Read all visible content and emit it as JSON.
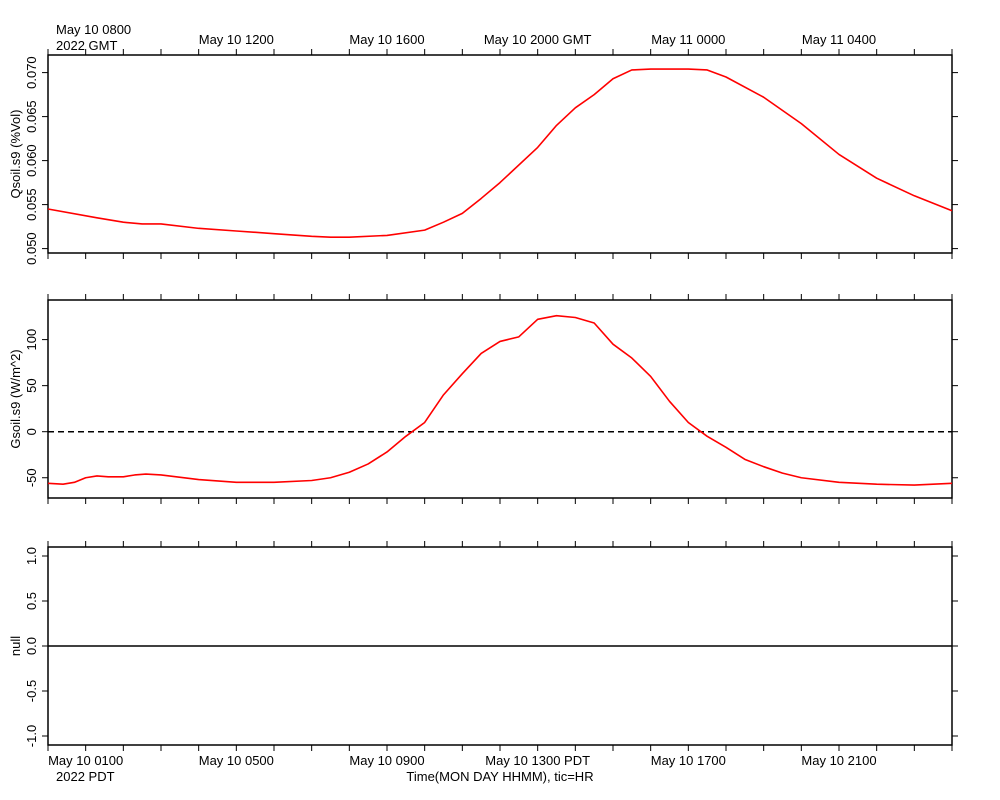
{
  "top_axis": {
    "first_label_line1": "May 10 0800",
    "first_label_line2": "2022 GMT",
    "labels": [
      {
        "hour": 4,
        "text": "May 10 1200"
      },
      {
        "hour": 8,
        "text": "May 10 1600"
      },
      {
        "hour": 12,
        "text": "May 10 2000 GMT"
      },
      {
        "hour": 16,
        "text": "May 11 0000"
      },
      {
        "hour": 20,
        "text": "May 11 0400"
      }
    ]
  },
  "bottom_axis": {
    "labels": [
      {
        "hour": 0,
        "text": "May 10 0100"
      },
      {
        "hour": 4,
        "text": "May 10 0500"
      },
      {
        "hour": 8,
        "text": "May 10 0900"
      },
      {
        "hour": 12,
        "text": "May 10 1300 PDT"
      },
      {
        "hour": 16,
        "text": "May 10 1700"
      },
      {
        "hour": 20,
        "text": "May 10 2100"
      }
    ],
    "year_label": "2022 PDT",
    "title": "Time(MON DAY HHMM), tic=HR"
  },
  "chart_data": [
    {
      "type": "line",
      "ylabel": "Qsoil.s9 (%Vol)",
      "xlim": [
        -1,
        23
      ],
      "ylim": [
        0.0495,
        0.072
      ],
      "yticks": [
        0.05,
        0.055,
        0.06,
        0.065,
        0.07
      ],
      "ytick_labels": [
        "0.050",
        "0.055",
        "0.060",
        "0.065",
        "0.070"
      ],
      "color": "#ff0000",
      "series": [
        {
          "x": [
            -1,
            0.3,
            1,
            1.5,
            2,
            3,
            4,
            5,
            6,
            6.5,
            7,
            8,
            9,
            9.5,
            10,
            10.5,
            11,
            12,
            12.5,
            13,
            13.5,
            14,
            14.5,
            15,
            16,
            16.5,
            17,
            18,
            19,
            20,
            21,
            22,
            23
          ],
          "y": [
            0.0545,
            0.0535,
            0.053,
            0.0528,
            0.0528,
            0.0523,
            0.052,
            0.0517,
            0.0514,
            0.0513,
            0.0513,
            0.0515,
            0.0521,
            0.053,
            0.054,
            0.0557,
            0.0575,
            0.0615,
            0.064,
            0.066,
            0.0675,
            0.0693,
            0.0703,
            0.0704,
            0.0704,
            0.0703,
            0.0695,
            0.0672,
            0.0642,
            0.0607,
            0.058,
            0.056,
            0.0543
          ]
        }
      ]
    },
    {
      "type": "line",
      "ylabel": "Gsoil.s9 (W/m^2)",
      "xlim": [
        -1,
        23
      ],
      "ylim": [
        -72,
        143
      ],
      "yticks": [
        -50,
        0,
        50,
        100
      ],
      "ytick_labels": [
        "-50",
        "0",
        "50",
        "100"
      ],
      "zero_line": {
        "y": 0,
        "dashed": true
      },
      "color": "#ff0000",
      "series": [
        {
          "x": [
            -1,
            -0.6,
            -0.3,
            0,
            0.3,
            0.6,
            1,
            1.3,
            1.6,
            2,
            3,
            4,
            5,
            6,
            6.5,
            7,
            7.5,
            8,
            8.5,
            9,
            9.5,
            10,
            10.5,
            11,
            11.5,
            12,
            12.5,
            13,
            13.5,
            14,
            14.5,
            15,
            15.5,
            16,
            16.5,
            17,
            17.5,
            18,
            18.5,
            19,
            20,
            21,
            22,
            23
          ],
          "y": [
            -56,
            -57,
            -55,
            -50,
            -48,
            -49,
            -49,
            -47,
            -46,
            -47,
            -52,
            -55,
            -55,
            -53,
            -50,
            -44,
            -35,
            -22,
            -5,
            10,
            40,
            63,
            85,
            98,
            103,
            122,
            126,
            124,
            118,
            95,
            80,
            60,
            33,
            10,
            -5,
            -17,
            -30,
            -38,
            -45,
            -50,
            -55,
            -57,
            -58,
            -56
          ]
        }
      ]
    },
    {
      "type": "line",
      "ylabel": "null",
      "xlim": [
        -1,
        23
      ],
      "ylim": [
        -1.1,
        1.1
      ],
      "yticks": [
        -1,
        -0.5,
        0,
        0.5,
        1
      ],
      "ytick_labels": [
        "-1.0",
        "-0.5",
        "0.0",
        "0.5",
        "1.0"
      ],
      "color": "#000000",
      "series": [
        {
          "x": [
            -1,
            23
          ],
          "y": [
            0,
            0
          ]
        }
      ]
    }
  ]
}
